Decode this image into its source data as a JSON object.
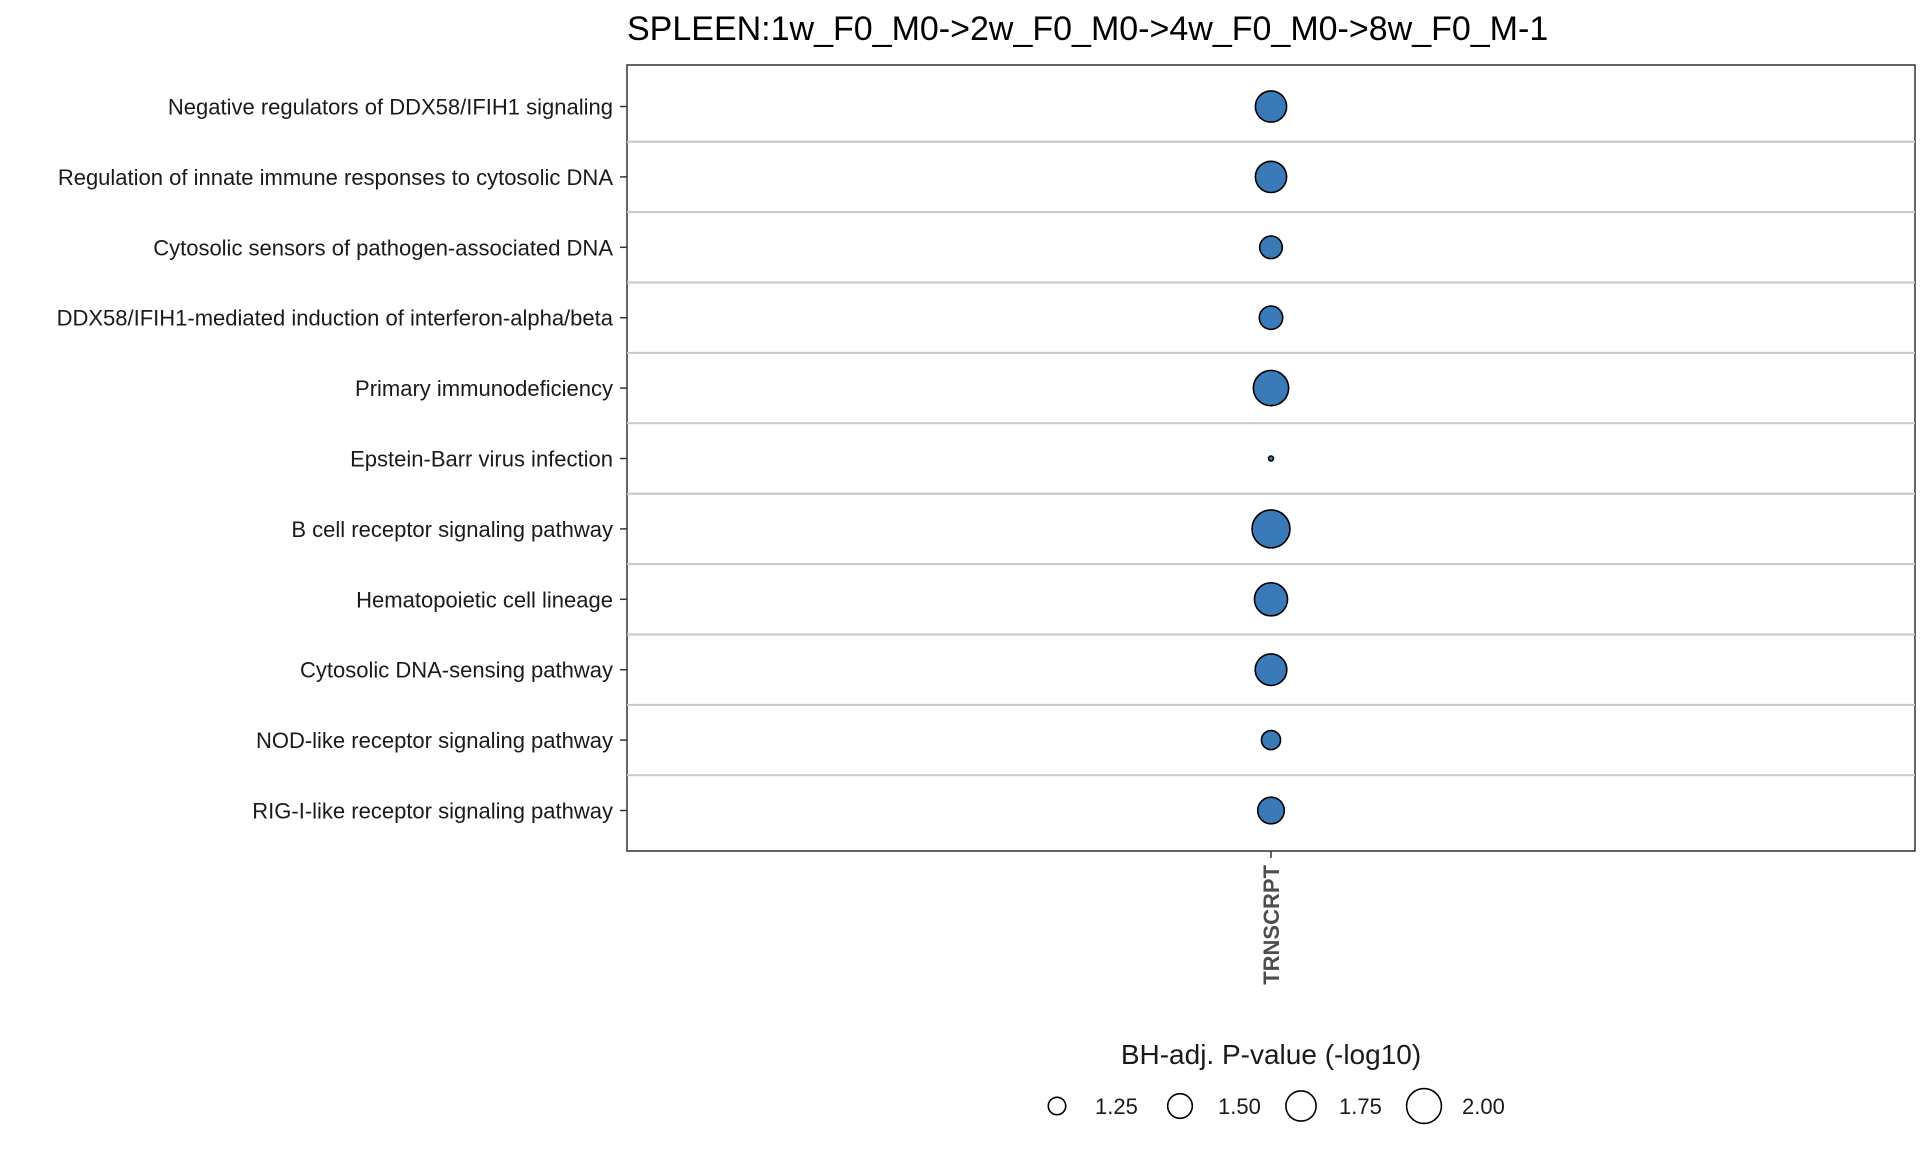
{
  "chart_data": {
    "type": "scatter",
    "title": "SPLEEN:1w_F0_M0->2w_F0_M0->4w_F0_M0->8w_F0_M-1",
    "x_categories": [
      "TRNSCRPT"
    ],
    "y_categories": [
      "Negative regulators of DDX58/IFIH1 signaling",
      "Regulation of innate immune responses to cytosolic DNA",
      "Cytosolic sensors of pathogen-associated DNA ",
      "DDX58/IFIH1-mediated induction of interferon-alpha/beta",
      "Primary immunodeficiency",
      "Epstein-Barr virus infection",
      "B cell receptor signaling pathway",
      "Hematopoietic cell lineage",
      "Cytosolic DNA-sensing pathway",
      "NOD-like receptor signaling pathway",
      "RIG-I-like receptor signaling pathway"
    ],
    "points": [
      {
        "x": "TRNSCRPT",
        "y": "Negative regulators of DDX58/IFIH1 signaling",
        "size": 1.8
      },
      {
        "x": "TRNSCRPT",
        "y": "Regulation of innate immune responses to cytosolic DNA",
        "size": 1.8
      },
      {
        "x": "TRNSCRPT",
        "y": "Cytosolic sensors of pathogen-associated DNA ",
        "size": 1.42
      },
      {
        "x": "TRNSCRPT",
        "y": "DDX58/IFIH1-mediated induction of interferon-alpha/beta",
        "size": 1.45
      },
      {
        "x": "TRNSCRPT",
        "y": "Primary immunodeficiency",
        "size": 2.02
      },
      {
        "x": "TRNSCRPT",
        "y": "Epstein-Barr virus infection",
        "size": 1.02
      },
      {
        "x": "TRNSCRPT",
        "y": "B cell receptor signaling pathway",
        "size": 2.18
      },
      {
        "x": "TRNSCRPT",
        "y": "Hematopoietic cell lineage",
        "size": 1.9
      },
      {
        "x": "TRNSCRPT",
        "y": "Cytosolic DNA-sensing pathway",
        "size": 1.82
      },
      {
        "x": "TRNSCRPT",
        "y": "NOD-like receptor signaling pathway",
        "size": 1.3
      },
      {
        "x": "TRNSCRPT",
        "y": "RIG-I-like receptor signaling pathway",
        "size": 1.58
      }
    ],
    "size_legend": {
      "title": "BH-adj. P-value (-log10)",
      "values": [
        1.25,
        1.5,
        1.75,
        2.0
      ],
      "labels": [
        "1.25",
        "1.50",
        "1.75",
        "2.00"
      ],
      "placement": "bottom"
    },
    "point_color": "#3a7ab8",
    "grid": "horizontal"
  }
}
